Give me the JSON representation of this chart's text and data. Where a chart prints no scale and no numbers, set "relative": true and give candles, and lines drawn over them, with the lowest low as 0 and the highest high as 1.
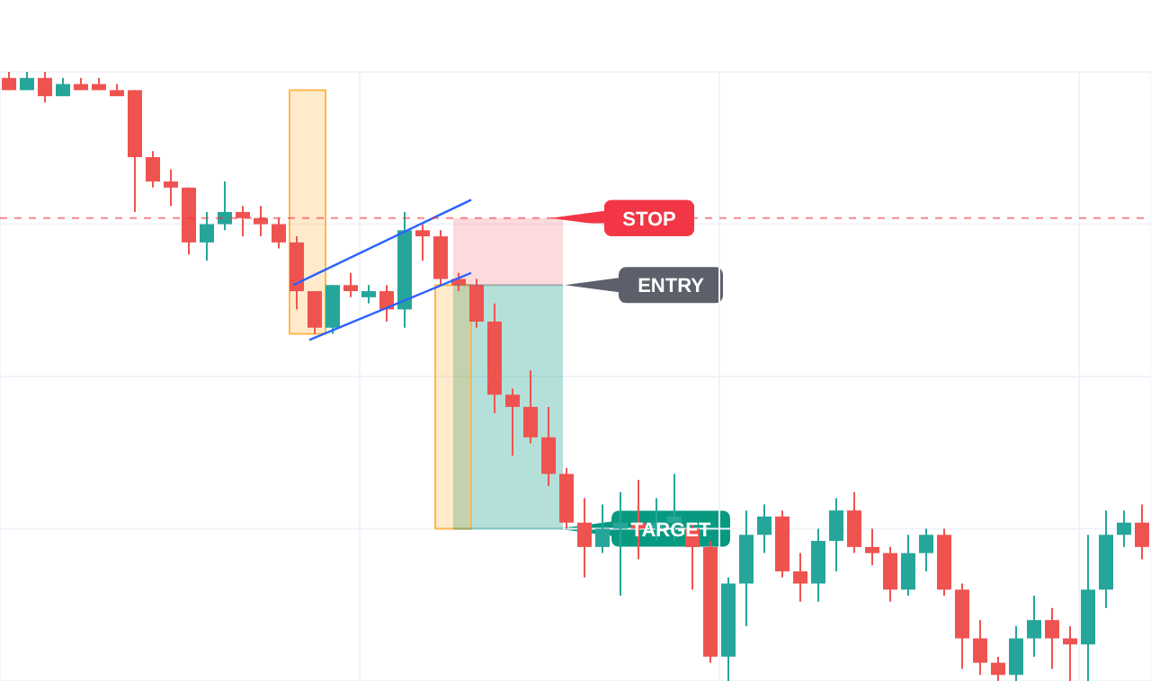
{
  "chart_data": {
    "type": "candlestick",
    "relative": true,
    "grid": true,
    "categories": [
      null,
      null,
      null,
      null,
      null,
      null,
      null,
      null,
      null,
      null,
      null,
      null,
      null,
      null,
      null,
      null,
      null,
      null,
      null,
      null,
      null,
      null,
      null,
      null,
      null,
      null,
      null,
      null,
      null,
      null,
      null,
      null,
      null,
      null,
      null,
      null,
      null,
      null,
      null,
      null,
      null,
      null,
      null,
      null,
      null,
      null,
      null,
      null,
      null,
      null,
      null,
      null,
      null,
      null,
      null,
      null,
      null,
      null,
      null,
      null,
      null,
      null,
      null,
      null
    ],
    "ohlc": [
      [
        0.99,
        1,
        0.97,
        0.97
      ],
      [
        0.97,
        1,
        0.97,
        0.99
      ],
      [
        0.99,
        1,
        0.95,
        0.96
      ],
      [
        0.96,
        0.99,
        0.96,
        0.98
      ],
      [
        0.98,
        0.99,
        0.97,
        0.97
      ],
      [
        0.98,
        0.99,
        0.97,
        0.97
      ],
      [
        0.97,
        0.98,
        0.96,
        0.96
      ],
      [
        0.97,
        0.97,
        0.77,
        0.86
      ],
      [
        0.86,
        0.87,
        0.81,
        0.82
      ],
      [
        0.82,
        0.84,
        0.78,
        0.81
      ],
      [
        0.81,
        0.81,
        0.7,
        0.72
      ],
      [
        0.72,
        0.77,
        0.69,
        0.75
      ],
      [
        0.75,
        0.82,
        0.74,
        0.77
      ],
      [
        0.77,
        0.78,
        0.73,
        0.76
      ],
      [
        0.76,
        0.78,
        0.73,
        0.75
      ],
      [
        0.75,
        0.76,
        0.71,
        0.72
      ],
      [
        0.72,
        0.73,
        0.61,
        0.64
      ],
      [
        0.64,
        0.64,
        0.57,
        0.58
      ],
      [
        0.58,
        0.65,
        0.57,
        0.65
      ],
      [
        0.65,
        0.67,
        0.63,
        0.64
      ],
      [
        0.63,
        0.65,
        0.62,
        0.64
      ],
      [
        0.64,
        0.65,
        0.59,
        0.61
      ],
      [
        0.61,
        0.77,
        0.58,
        0.74
      ],
      [
        0.74,
        0.75,
        0.69,
        0.73
      ],
      [
        0.73,
        0.74,
        0.65,
        0.66
      ],
      [
        0.66,
        0.67,
        0.64,
        0.65
      ],
      [
        0.65,
        0.66,
        0.58,
        0.59
      ],
      [
        0.59,
        0.62,
        0.44,
        0.47
      ],
      [
        0.47,
        0.48,
        0.37,
        0.45
      ],
      [
        0.45,
        0.51,
        0.39,
        0.4
      ],
      [
        0.4,
        0.45,
        0.32,
        0.34
      ],
      [
        0.34,
        0.35,
        0.25,
        0.26
      ],
      [
        0.26,
        0.3,
        0.17,
        0.22
      ],
      [
        0.22,
        0.29,
        0.21,
        0.25
      ],
      [
        0.25,
        0.31,
        0.14,
        0.26
      ],
      [
        0.26,
        0.33,
        0.2,
        0.25
      ],
      [
        0.25,
        0.3,
        0.23,
        0.26
      ],
      [
        0.26,
        0.34,
        0.23,
        0.27
      ],
      [
        0.25,
        0.26,
        0.15,
        0.22
      ],
      [
        0.22,
        0.23,
        0.03,
        0.04
      ],
      [
        0.04,
        0.17,
        0,
        0.16
      ],
      [
        0.16,
        0.28,
        0.09,
        0.24
      ],
      [
        0.24,
        0.29,
        0.21,
        0.27
      ],
      [
        0.27,
        0.28,
        0.17,
        0.18
      ],
      [
        0.18,
        0.21,
        0.13,
        0.16
      ],
      [
        0.16,
        0.25,
        0.13,
        0.23
      ],
      [
        0.23,
        0.3,
        0.18,
        0.28
      ],
      [
        0.28,
        0.31,
        0.21,
        0.22
      ],
      [
        0.22,
        0.25,
        0.19,
        0.21
      ],
      [
        0.21,
        0.22,
        0.13,
        0.15
      ],
      [
        0.15,
        0.24,
        0.14,
        0.21
      ],
      [
        0.21,
        0.25,
        0.18,
        0.24
      ],
      [
        0.24,
        0.25,
        0.14,
        0.15
      ],
      [
        0.15,
        0.16,
        0.02,
        0.07
      ],
      [
        0.07,
        0.1,
        0.01,
        0.03
      ],
      [
        0.03,
        0.04,
        0,
        0.01
      ],
      [
        0.01,
        0.09,
        0,
        0.07
      ],
      [
        0.07,
        0.14,
        0.04,
        0.1
      ],
      [
        0.1,
        0.12,
        0.02,
        0.07
      ],
      [
        0.07,
        0.09,
        0,
        0.06
      ],
      [
        0.06,
        0.24,
        0,
        0.15
      ],
      [
        0.15,
        0.28,
        0.12,
        0.24
      ],
      [
        0.24,
        0.28,
        0.22,
        0.26
      ],
      [
        0.26,
        0.29,
        0.2,
        0.22
      ]
    ],
    "colors": [
      "#ef5350",
      "#26a69a",
      "#ef5350",
      "#26a69a",
      "#ef5350",
      "#ef5350",
      "#ef5350",
      "#ef5350",
      "#ef5350",
      "#ef5350",
      "#ef5350",
      "#26a69a",
      "#26a69a",
      "#ef5350",
      "#ef5350",
      "#ef5350",
      "#ef5350",
      "#ef5350",
      "#26a69a",
      "#ef5350",
      "#26a69a",
      "#ef5350",
      "#26a69a",
      "#ef5350",
      "#ef5350",
      "#ef5350",
      "#ef5350",
      "#ef5350",
      "#ef5350",
      "#ef5350",
      "#ef5350",
      "#ef5350",
      "#ef5350",
      "#26a69a",
      "#26a69a",
      "#ef5350",
      "#26a69a",
      "#26a69a",
      "#ef5350",
      "#ef5350",
      "#26a69a",
      "#26a69a",
      "#26a69a",
      "#ef5350",
      "#ef5350",
      "#26a69a",
      "#26a69a",
      "#ef5350",
      "#ef5350",
      "#ef5350",
      "#26a69a",
      "#26a69a",
      "#ef5350",
      "#ef5350",
      "#ef5350",
      "#ef5350",
      "#26a69a",
      "#26a69a",
      "#ef5350",
      "#ef5350",
      "#26a69a",
      "#26a69a",
      "#26a69a",
      "#ef5350"
    ],
    "ref_lines": [
      {
        "axis": "y",
        "value": 0.76,
        "label": "STOP",
        "color": "#f23645",
        "line_style": "dashed"
      },
      {
        "axis": "y",
        "value": 0.65,
        "label": "ENTRY",
        "color": "#5d606b"
      },
      {
        "axis": "y",
        "value": 0.25,
        "label": "TARGET",
        "color": "#089981"
      }
    ]
  }
}
